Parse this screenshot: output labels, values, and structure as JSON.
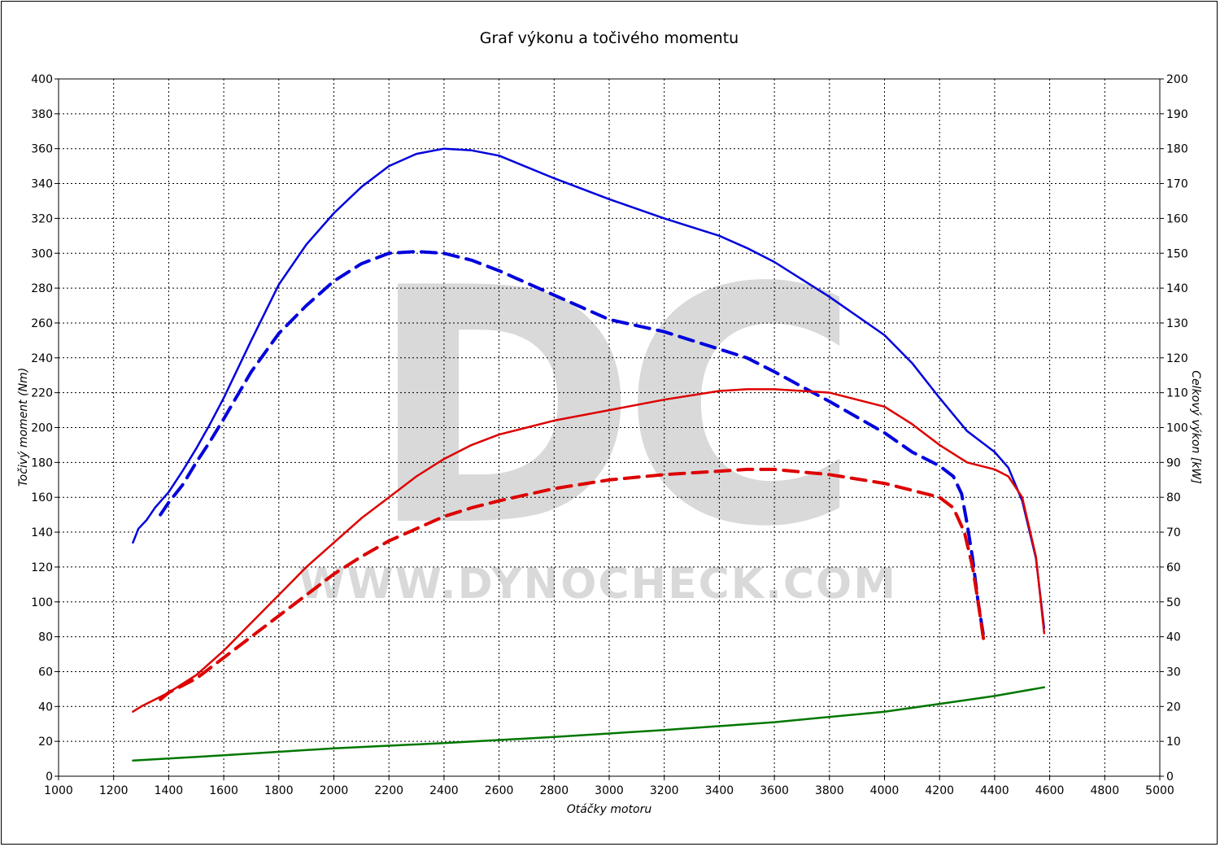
{
  "chart_data": {
    "type": "line",
    "title": "Graf výkonu a točivého momentu",
    "xlabel": "Otáčky motoru",
    "ylabel_left": "Točivý moment (Nm)",
    "ylabel_right": "Celkový výkon [kW]",
    "xlim": [
      1000,
      5000
    ],
    "ylim_left": [
      0,
      400
    ],
    "ylim_right": [
      0,
      200
    ],
    "x_ticks": [
      "1000",
      "1200",
      "1400",
      "1600",
      "1800",
      "2000",
      "2200",
      "2400",
      "2600",
      "2800",
      "3000",
      "3200",
      "3400",
      "3600",
      "3800",
      "4000",
      "4200",
      "4400",
      "4600",
      "4800",
      "5000"
    ],
    "y_left_ticks": [
      "0",
      "20",
      "40",
      "60",
      "80",
      "100",
      "120",
      "140",
      "160",
      "180",
      "200",
      "220",
      "240",
      "260",
      "280",
      "300",
      "320",
      "340",
      "360",
      "380",
      "400"
    ],
    "y_right_ticks": [
      "0",
      "10",
      "20",
      "30",
      "40",
      "50",
      "60",
      "70",
      "80",
      "90",
      "100",
      "110",
      "120",
      "130",
      "140",
      "150",
      "160",
      "170",
      "180",
      "190",
      "200"
    ],
    "grid": true,
    "watermark": {
      "logo": "DC",
      "url": "WWW.DYNOCHECK.COM"
    },
    "series": [
      {
        "color": "#0000dd",
        "style": "solid",
        "axis": "left",
        "x": [
          1270,
          1290,
          1320,
          1350,
          1400,
          1450,
          1500,
          1550,
          1600,
          1700,
          1800,
          1900,
          2000,
          2100,
          2200,
          2300,
          2400,
          2500,
          2600,
          2800,
          3000,
          3200,
          3400,
          3500,
          3600,
          3800,
          4000,
          4100,
          4200,
          4300,
          4400,
          4450,
          4500,
          4550,
          4580
        ],
        "y": [
          134,
          142,
          147,
          154,
          163,
          175,
          188,
          202,
          217,
          250,
          282,
          305,
          323,
          338,
          350,
          357,
          360,
          359,
          356,
          343,
          331,
          320,
          310,
          303,
          295,
          275,
          253,
          237,
          217,
          198,
          186,
          177,
          158,
          125,
          85
        ]
      },
      {
        "color": "#0000dd",
        "style": "dashed",
        "axis": "left",
        "x": [
          1370,
          1400,
          1450,
          1500,
          1550,
          1600,
          1700,
          1800,
          1900,
          2000,
          2100,
          2200,
          2300,
          2400,
          2500,
          2600,
          2800,
          3000,
          3200,
          3400,
          3500,
          3600,
          3800,
          4000,
          4100,
          4200,
          4250,
          4280,
          4300,
          4320,
          4340,
          4360
        ],
        "y": [
          150,
          157,
          167,
          180,
          192,
          205,
          232,
          254,
          270,
          284,
          294,
          300,
          301,
          300,
          296,
          290,
          276,
          262,
          255,
          245,
          240,
          232,
          215,
          197,
          186,
          178,
          172,
          162,
          145,
          125,
          100,
          80
        ]
      },
      {
        "color": "#dd0000",
        "style": "solid",
        "axis": "right",
        "x": [
          1270,
          1300,
          1350,
          1400,
          1500,
          1600,
          1700,
          1800,
          1900,
          2000,
          2100,
          2200,
          2300,
          2400,
          2500,
          2600,
          2800,
          3000,
          3200,
          3400,
          3500,
          3600,
          3800,
          4000,
          4100,
          4200,
          4300,
          4400,
          4450,
          4500,
          4550,
          4580
        ],
        "y": [
          18.5,
          20,
          22,
          24,
          29,
          36,
          44,
          52,
          60,
          67,
          74,
          80,
          86,
          91,
          95,
          98,
          102,
          105,
          108,
          110.5,
          111,
          111,
          110,
          106,
          101,
          95,
          90,
          88,
          86,
          80,
          63,
          41
        ]
      },
      {
        "color": "#dd0000",
        "style": "dashed",
        "axis": "right",
        "x": [
          1370,
          1400,
          1500,
          1600,
          1700,
          1800,
          1900,
          2000,
          2100,
          2200,
          2300,
          2400,
          2500,
          2600,
          2800,
          3000,
          3200,
          3400,
          3500,
          3600,
          3800,
          4000,
          4100,
          4200,
          4250,
          4290,
          4320,
          4340,
          4360
        ],
        "y": [
          22,
          24,
          28,
          34,
          40,
          46,
          52,
          58,
          63,
          67.5,
          71,
          74.5,
          77,
          79,
          82.5,
          85,
          86.5,
          87.5,
          88,
          88,
          86.5,
          84,
          82,
          80,
          77,
          70,
          60,
          50,
          39
        ]
      },
      {
        "color": "#007700",
        "style": "solid",
        "axis": "left",
        "x": [
          1270,
          1600,
          2000,
          2400,
          2800,
          3200,
          3600,
          4000,
          4200,
          4400,
          4580
        ],
        "y": [
          9,
          12,
          16,
          19,
          22.5,
          26.5,
          31,
          37,
          41.5,
          46,
          51
        ]
      }
    ]
  }
}
